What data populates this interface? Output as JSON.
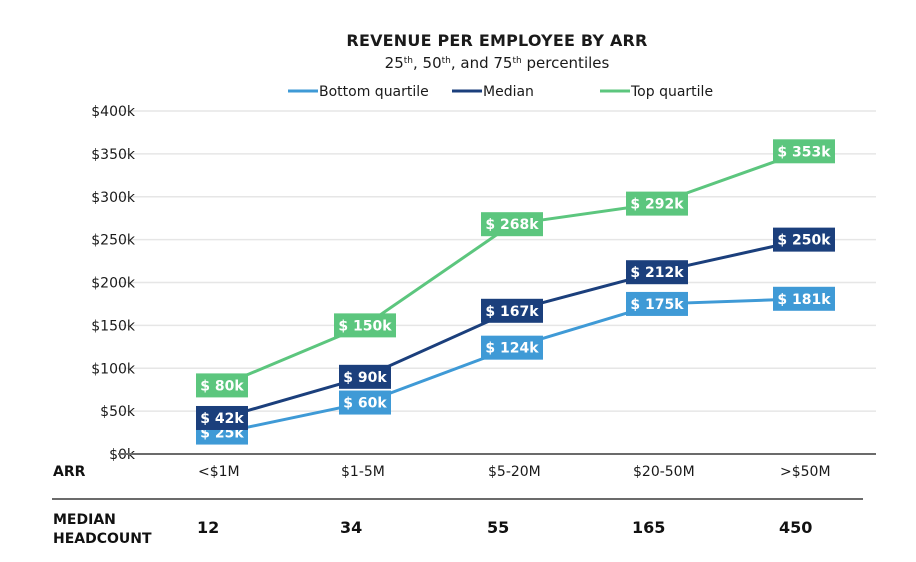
{
  "chart_data": {
    "type": "line",
    "title": "REVENUE PER EMPLOYEE BY ARR",
    "subtitle": {
      "parts": [
        {
          "text": "25",
          "sup": false
        },
        {
          "text": "th",
          "sup": true
        },
        {
          "text": ", 50",
          "sup": false
        },
        {
          "text": "th",
          "sup": true
        },
        {
          "text": ", and 75",
          "sup": false
        },
        {
          "text": "th",
          "sup": true
        },
        {
          "text": " percentiles",
          "sup": false
        }
      ]
    },
    "xlabel": "ARR",
    "ylabel": "",
    "categories": [
      "<$1M",
      "$1-5M",
      "$5-20M",
      "$20-50M",
      ">$50M"
    ],
    "ylim": [
      0,
      400
    ],
    "yunit": "k USD",
    "yticks": [
      0,
      50,
      100,
      150,
      200,
      250,
      300,
      350,
      400
    ],
    "ytick_labels": [
      "$0k",
      "$50k",
      "$100k",
      "$150k",
      "$200k",
      "$250k",
      "$300k",
      "$350k",
      "$400k"
    ],
    "grid": true,
    "legend_position": "top-center",
    "series": [
      {
        "name": "Bottom quartile",
        "color": "#3f9ad6",
        "values": [
          25,
          60,
          124,
          175,
          181
        ],
        "labels": [
          "$ 25k",
          "$ 60k",
          "$ 124k",
          "$ 175k",
          "$ 181k"
        ]
      },
      {
        "name": "Median",
        "color": "#1b3f7c",
        "values": [
          42,
          90,
          167,
          212,
          250
        ],
        "labels": [
          "$ 42k",
          "$ 90k",
          "$ 167k",
          "$ 212k",
          "$ 250k"
        ]
      },
      {
        "name": "Top quartile",
        "color": "#5cc67e",
        "values": [
          80,
          150,
          268,
          292,
          353
        ],
        "labels": [
          "$ 80k",
          "$ 150k",
          "$ 268k",
          "$ 292k",
          "$ 353k"
        ]
      }
    ],
    "table": {
      "row_header_arr": "ARR",
      "row_header_headcount": [
        "MEDIAN",
        "HEADCOUNT"
      ],
      "median_headcount": [
        "12",
        "34",
        "55",
        "165",
        "450"
      ]
    }
  }
}
